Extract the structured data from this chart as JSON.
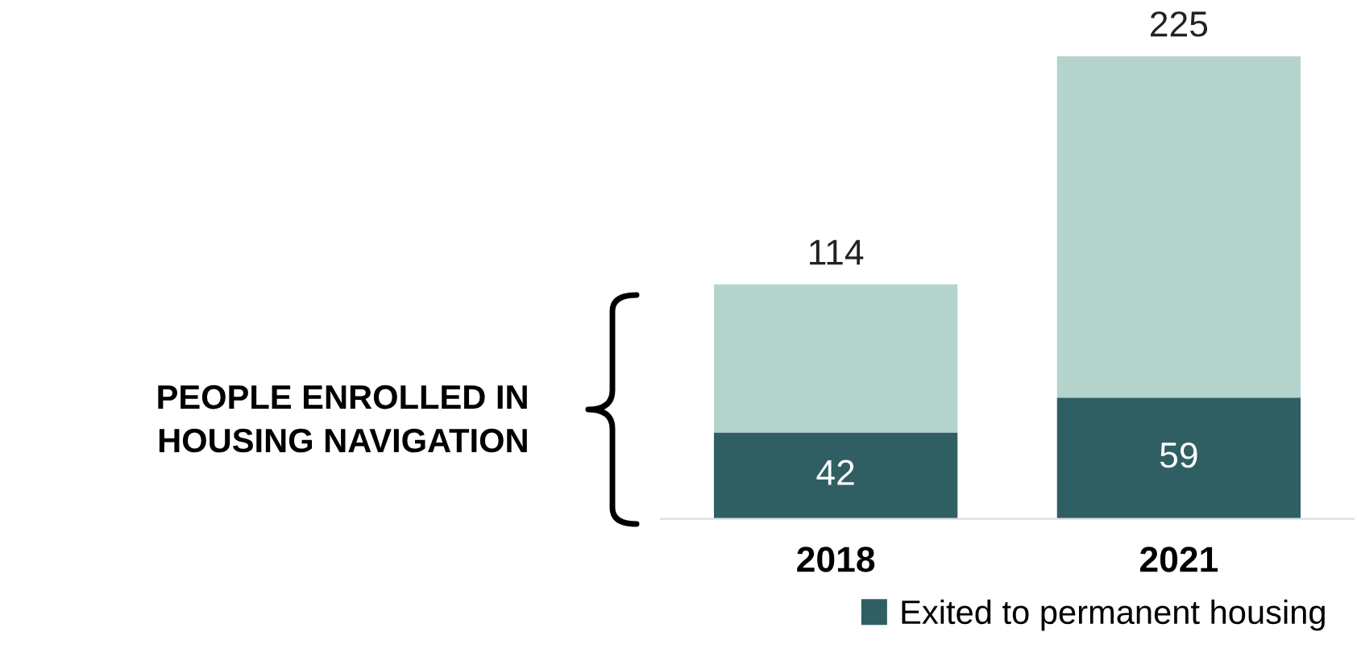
{
  "chart_data": {
    "type": "bar",
    "stacked": true,
    "ylabel": "PEOPLE ENROLLED IN\nHOUSING NAVIGATION",
    "categories": [
      "2018",
      "2021"
    ],
    "series": [
      {
        "name": "Exited to permanent housing",
        "color": "#2f5f63",
        "values": [
          42,
          59
        ],
        "value_labels": [
          "42",
          "59"
        ]
      },
      {
        "color": "#b5d3cd",
        "values": [
          72,
          166
        ]
      }
    ],
    "totals": [
      "114",
      "225"
    ],
    "tick_labels": "x",
    "grid": false,
    "legend": "bottom right"
  }
}
